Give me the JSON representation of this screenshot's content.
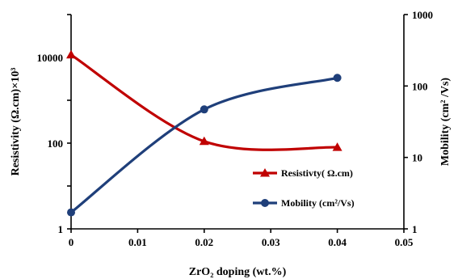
{
  "chart_data": {
    "type": "line",
    "xlabel": "ZrO₂ doping (wt.%)",
    "ylabel_left": "Resistivity (Ω.cm)×10³",
    "ylabel_right": "Mobility (cm² /Vs)",
    "xlim": [
      0,
      0.05
    ],
    "x_ticks": [
      "0",
      "0.01",
      "0.02",
      "0.03",
      "0.04",
      "0.05"
    ],
    "y_left_scale": "log",
    "y_left_range": [
      1,
      100000
    ],
    "y_left_ticks": [
      "1",
      "100",
      "10000"
    ],
    "y_right_scale": "log",
    "y_right_range": [
      1,
      1000
    ],
    "y_right_ticks": [
      "1",
      "10",
      "100",
      "1000"
    ],
    "x": [
      0,
      0.02,
      0.04
    ],
    "series": [
      {
        "name": "Resistivty( Ω.cm)",
        "axis": "left",
        "marker": "triangle",
        "color": "#c00000",
        "values": [
          11500,
          110,
          80
        ]
      },
      {
        "name": "Mobility (cm²/Vs)",
        "axis": "right",
        "marker": "circle",
        "color": "#1f3f7a",
        "values": [
          1.7,
          47,
          130
        ]
      }
    ],
    "legend_position": "center-right",
    "grid": false
  }
}
